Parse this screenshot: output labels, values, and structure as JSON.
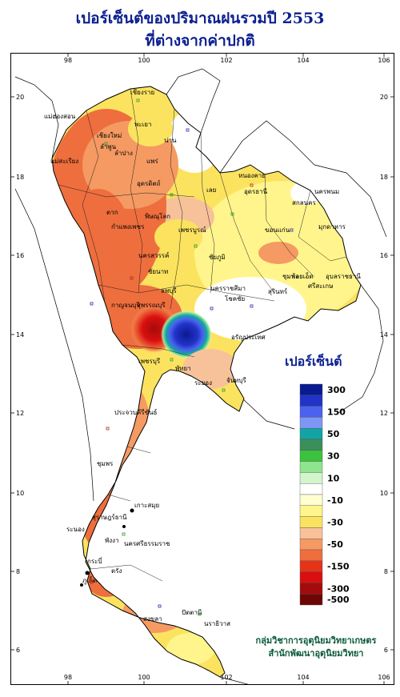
{
  "title": {
    "line1": "เปอร์เซ็นต์ของปริมาณฝนรวมปี 2553",
    "line2": "ที่ต่างจากค่าปกติ"
  },
  "axes": {
    "lon_ticks": [
      "98",
      "100",
      "102",
      "104",
      "106"
    ],
    "lat_ticks": [
      "20",
      "18",
      "16",
      "14",
      "12",
      "10",
      "8",
      "6"
    ]
  },
  "provinces": [
    "เชียงราย",
    "แม่ฮ่องสอน",
    "พะเยา",
    "เชียงใหม่",
    "น่าน",
    "ลำพูน",
    "ลำปาง",
    "แพร่",
    "แม่สะเรียง",
    "อุตรดิตถ์",
    "หนองคาย",
    "เลย",
    "อุดรธานี",
    "นครพนม",
    "สกลนคร",
    "ตาก",
    "พิษณุโลก",
    "ขอนแก่น",
    "มุกดาหาร",
    "กำแพงเพชร",
    "เพชรบูรณ์",
    "นครสวรรค์",
    "ชัยภูมิ",
    "ร้อยเอ็ด",
    "อุบลราชธานี",
    "ชัยนาท",
    "ลพบุรี",
    "นครราชสีมา",
    "โชคชัย",
    "ชุมพล",
    "สุรินทร์",
    "ศรีสะเกษ",
    "สุพรรณบุรี",
    "กาญจนบุรี",
    "อรัญประเทศ",
    "เพชรบุรี",
    "พัทยา",
    "ระยอง",
    "จันทบุรี",
    "ประจวบคีรีขันธ์",
    "ชุมพร",
    "เกาะสมุย",
    "ระนอง",
    "สุราษฎร์ธานี",
    "นครศรีธรรมราช",
    "พังงา",
    "กระบี่",
    "ภูเก็ต",
    "ตรัง",
    "สงขลา",
    "ปัตตานี",
    "นราธิวาส"
  ],
  "legend": {
    "title": "เปอร์เซ็นต์",
    "entries": [
      {
        "color": "#0a1a8f",
        "label": "300"
      },
      {
        "color": "#2233c8"
      },
      {
        "color": "#4a62ee",
        "label": "150"
      },
      {
        "color": "#7e96f5"
      },
      {
        "color": "#12a4a4",
        "label": "50"
      },
      {
        "color": "#3a8f5a"
      },
      {
        "color": "#3dc23d",
        "label": "30"
      },
      {
        "color": "#8ee58e"
      },
      {
        "color": "#d2f5cc",
        "label": "10"
      },
      {
        "color": "#ffffff"
      },
      {
        "color": "#ffffd2",
        "label": "-10"
      },
      {
        "color": "#fff58c"
      },
      {
        "color": "#fbe35f",
        "label": "-30"
      },
      {
        "color": "#f7c29a"
      },
      {
        "color": "#f59a62",
        "label": "-50"
      },
      {
        "color": "#ee6e3e"
      },
      {
        "color": "#e63318",
        "label": "-150"
      },
      {
        "color": "#d90f0f"
      },
      {
        "color": "#a30c0c",
        "label": "-300"
      },
      {
        "color": "#6e0606",
        "label": "-500"
      }
    ]
  },
  "credit": {
    "line1": "กลุ่มวิชาการอุตุนิยมวิทยาเกษตร",
    "line2": "สำนักพัฒนาอุตุนิยมวิทยา"
  }
}
